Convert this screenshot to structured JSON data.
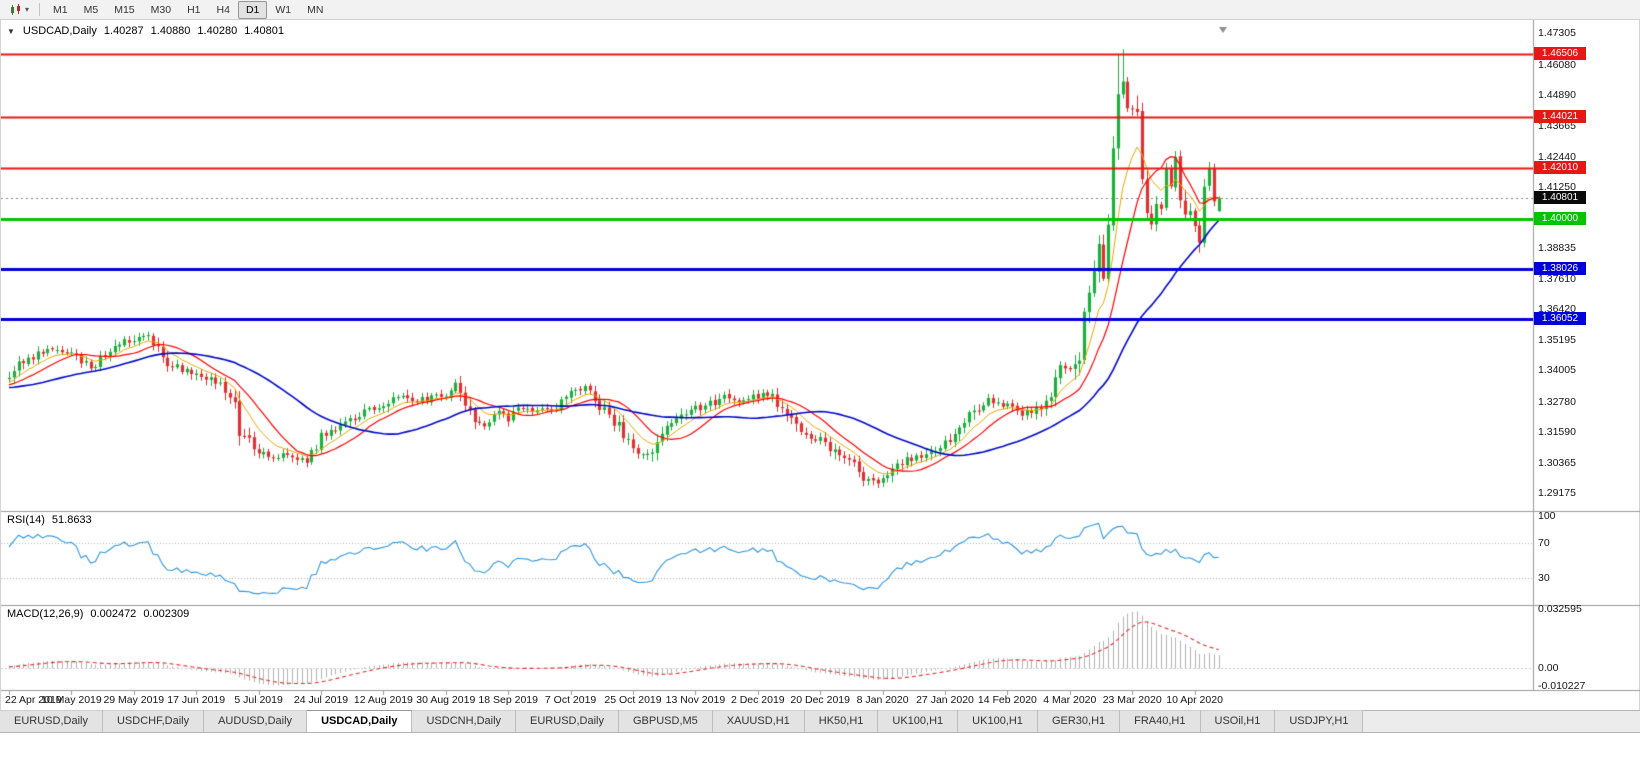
{
  "icons": {
    "collapse": "▼",
    "dropdown_caret": "▾"
  },
  "toolbar": {
    "timeframes": [
      "M1",
      "M5",
      "M15",
      "M30",
      "H1",
      "H4",
      "D1",
      "W1",
      "MN"
    ],
    "active_timeframe": "D1"
  },
  "window": {
    "title_symbol": "USDCAD,Daily",
    "ohlc": {
      "open": "1.40287",
      "high": "1.40880",
      "low": "1.40280",
      "close": "1.40801"
    }
  },
  "price_axis": {
    "labels": [
      "1.47305",
      "1.46080",
      "1.44890",
      "1.43665",
      "1.42440",
      "1.41250",
      "1.38835",
      "1.37610",
      "1.36420",
      "1.35195",
      "1.34005",
      "1.32780",
      "1.31590",
      "1.30365",
      "1.29175"
    ]
  },
  "levels": [
    {
      "price": 1.46506,
      "label": "1.46506",
      "color": "#e61717",
      "width": 2
    },
    {
      "price": 1.44021,
      "label": "1.44021",
      "color": "#e61717",
      "width": 2
    },
    {
      "price": 1.4201,
      "label": "1.42010",
      "color": "#e61717",
      "width": 2
    },
    {
      "price": 1.4,
      "label": "1.40000",
      "color": "#00c400",
      "width": 3
    },
    {
      "price": 1.38026,
      "label": "1.38026",
      "color": "#0000dc",
      "width": 3
    },
    {
      "price": 1.36052,
      "label": "1.36052",
      "color": "#0000dc",
      "width": 3
    }
  ],
  "current_price": {
    "value": 1.40801,
    "label": "1.40801",
    "badge_color": "#0a0a0a"
  },
  "date_axis": {
    "labels": [
      "22 Apr 2019",
      "10 May 2019",
      "29 May 2019",
      "17 Jun 2019",
      "5 Jul 2019",
      "24 Jul 2019",
      "12 Aug 2019",
      "30 Aug 2019",
      "18 Sep 2019",
      "7 Oct 2019",
      "25 Oct 2019",
      "13 Nov 2019",
      "2 Dec 2019",
      "20 Dec 2019",
      "8 Jan 2020",
      "27 Jan 2020",
      "14 Feb 2020",
      "4 Mar 2020",
      "23 Mar 2020",
      "10 Apr 2020"
    ],
    "step_days": 13
  },
  "rsi_panel": {
    "name": "RSI(14)",
    "value": "51.8633",
    "axis_labels": [
      "100",
      "70",
      "30"
    ],
    "level_lines": [
      70,
      30
    ],
    "line_color": "#2f96e0"
  },
  "macd_panel": {
    "name": "MACD(12,26,9)",
    "value_main": "0.002472",
    "value_signal": "0.002309",
    "axis_labels": [
      "0.032595",
      "0.00",
      "-0.010227"
    ],
    "histogram_color": "#b2b2b2",
    "signal_color": "#e03030"
  },
  "tabs": {
    "active_index": 3,
    "items": [
      "EURUSD,Daily",
      "USDCHF,Daily",
      "AUDUSD,Daily",
      "USDCAD,Daily",
      "USDCNH,Daily",
      "EURUSD,Daily",
      "GBPUSD,M5",
      "XAUUSD,H1",
      "HK50,H1",
      "UK100,H1",
      "UK100,H1",
      "GER30,H1",
      "FRA40,H1",
      "USOil,H1",
      "USDJPY,H1"
    ],
    "note": ""
  },
  "chart_data": {
    "type": "candlestick",
    "symbol": "USDCAD",
    "timeframe": "Daily",
    "x_range_days": 253,
    "preroll_days": 60,
    "seed": 20200417,
    "price_range": {
      "top": 1.476,
      "bottom": 1.2846
    },
    "colors": {
      "up": "#1fae3d",
      "down": "#e03030"
    },
    "volatility": {
      "base_jitter": 0.0011,
      "base_wick": 0.0017,
      "slope_wick": 0.0035,
      "slope_norm": 0.02
    },
    "anchors_close": [
      [
        -60,
        1.3255
      ],
      [
        -50,
        1.331
      ],
      [
        -40,
        1.338
      ],
      [
        -30,
        1.3345
      ],
      [
        -20,
        1.331
      ],
      [
        -10,
        1.333
      ],
      [
        -3,
        1.3345
      ],
      [
        0,
        1.337
      ],
      [
        3,
        1.3445
      ],
      [
        8,
        1.3475
      ],
      [
        13,
        1.346
      ],
      [
        17,
        1.342
      ],
      [
        21,
        1.348
      ],
      [
        26,
        1.3525
      ],
      [
        28,
        1.3545
      ],
      [
        31,
        1.3485
      ],
      [
        34,
        1.3415
      ],
      [
        39,
        1.3395
      ],
      [
        43,
        1.335
      ],
      [
        46,
        1.3285
      ],
      [
        49,
        1.313
      ],
      [
        52,
        1.3085
      ],
      [
        55,
        1.3045
      ],
      [
        58,
        1.3075
      ],
      [
        62,
        1.3045
      ],
      [
        65,
        1.3135
      ],
      [
        68,
        1.3165
      ],
      [
        72,
        1.3215
      ],
      [
        75,
        1.324
      ],
      [
        78,
        1.3255
      ],
      [
        81,
        1.3305
      ],
      [
        84,
        1.327
      ],
      [
        87,
        1.329
      ],
      [
        91,
        1.331
      ],
      [
        93,
        1.3345
      ],
      [
        96,
        1.322
      ],
      [
        99,
        1.318
      ],
      [
        102,
        1.323
      ],
      [
        104,
        1.321
      ],
      [
        107,
        1.326
      ],
      [
        110,
        1.3245
      ],
      [
        113,
        1.3255
      ],
      [
        117,
        1.3305
      ],
      [
        120,
        1.333
      ],
      [
        123,
        1.326
      ],
      [
        126,
        1.32
      ],
      [
        130,
        1.309
      ],
      [
        133,
        1.306
      ],
      [
        136,
        1.3145
      ],
      [
        139,
        1.323
      ],
      [
        143,
        1.325
      ],
      [
        146,
        1.327
      ],
      [
        149,
        1.33
      ],
      [
        152,
        1.328
      ],
      [
        156,
        1.3295
      ],
      [
        158,
        1.3315
      ],
      [
        161,
        1.3255
      ],
      [
        164,
        1.317
      ],
      [
        167,
        1.313
      ],
      [
        169,
        1.3125
      ],
      [
        172,
        1.308
      ],
      [
        175,
        1.3035
      ],
      [
        178,
        1.2985
      ],
      [
        180,
        1.2958
      ],
      [
        182,
        1.2975
      ],
      [
        185,
        1.3025
      ],
      [
        188,
        1.305
      ],
      [
        191,
        1.3065
      ],
      [
        195,
        1.312
      ],
      [
        198,
        1.318
      ],
      [
        201,
        1.3245
      ],
      [
        204,
        1.329
      ],
      [
        208,
        1.3255
      ],
      [
        211,
        1.323
      ],
      [
        214,
        1.3245
      ],
      [
        217,
        1.331
      ],
      [
        219,
        1.34
      ],
      [
        221,
        1.3415
      ],
      [
        222,
        1.339
      ],
      [
        223,
        1.3425
      ],
      [
        224,
        1.366
      ],
      [
        225,
        1.373
      ],
      [
        226,
        1.379
      ],
      [
        227,
        1.392
      ],
      [
        228,
        1.38
      ],
      [
        229,
        1.399
      ],
      [
        230,
        1.424
      ],
      [
        231,
        1.449
      ],
      [
        232,
        1.4505
      ],
      [
        233,
        1.442
      ],
      [
        234,
        1.445
      ],
      [
        235,
        1.443
      ],
      [
        236,
        1.419
      ],
      [
        237,
        1.403
      ],
      [
        238,
        1.399
      ],
      [
        239,
        1.409
      ],
      [
        240,
        1.4055
      ],
      [
        241,
        1.4205
      ],
      [
        242,
        1.4135
      ],
      [
        243,
        1.4205
      ],
      [
        244,
        1.4085
      ],
      [
        245,
        1.4005
      ],
      [
        246,
        1.4035
      ],
      [
        247,
        1.3965
      ],
      [
        248,
        1.392
      ],
      [
        249,
        1.4105
      ],
      [
        250,
        1.418
      ],
      [
        251,
        1.408
      ],
      [
        252,
        1.40801
      ]
    ],
    "key_candles": [
      {
        "d": 231,
        "h": 1.465
      },
      {
        "d": 232,
        "h": 1.4668
      },
      {
        "d": 252,
        "o": 1.40287,
        "h": 1.4088,
        "l": 1.4028,
        "c": 1.40801
      }
    ],
    "moving_averages": [
      {
        "type": "ema",
        "period": 8,
        "color": "#e8a800",
        "width": 1
      },
      {
        "type": "sma",
        "period": 13,
        "color": "#ff0000",
        "width": 1.2
      },
      {
        "type": "sma",
        "period": 34,
        "color": "#0009c8",
        "width": 1.6
      }
    ],
    "indicators": {
      "rsi_period": 14,
      "macd": [
        12,
        26,
        9
      ]
    }
  }
}
